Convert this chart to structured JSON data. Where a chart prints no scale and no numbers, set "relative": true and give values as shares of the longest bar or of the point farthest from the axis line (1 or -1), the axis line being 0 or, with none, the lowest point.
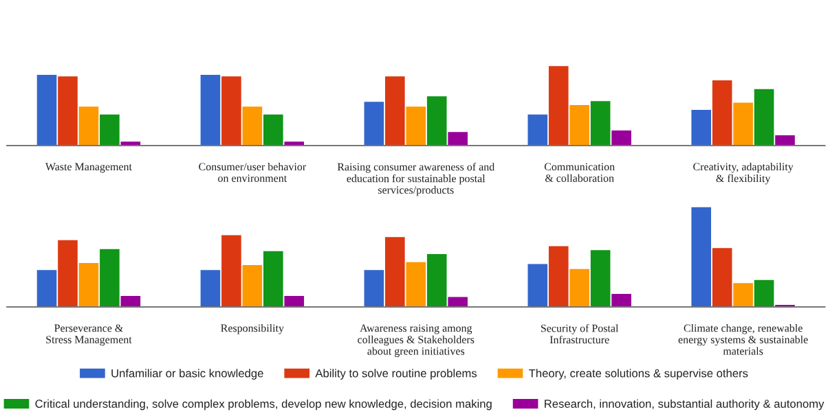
{
  "chart_data": [
    {
      "type": "bar",
      "relative": true,
      "legend": "bottom",
      "categories": [
        "Waste Management",
        "Consumer/user behavior\non environment",
        "Raising consumer awareness of and\neducation for sustainable postal\nservices/products",
        "Communication\n& collaboration",
        "Creativity, adaptability\n& flexibility"
      ],
      "series": [
        {
          "name": "Unfamiliar or basic knowledge",
          "color": "#3366cc",
          "values": [
            0.89,
            0.89,
            0.55,
            0.39,
            0.45
          ]
        },
        {
          "name": "Ability to solve routine problems",
          "color": "#dc3912",
          "values": [
            0.87,
            0.87,
            0.87,
            1,
            0.82
          ]
        },
        {
          "name": "Theory, create solutions & supervise others",
          "color": "#ff9900",
          "values": [
            0.49,
            0.49,
            0.49,
            0.51,
            0.54
          ]
        },
        {
          "name": "Critical understanding, solve complex problems, develop new knowledge, decision making",
          "color": "#109618",
          "values": [
            0.39,
            0.39,
            0.62,
            0.56,
            0.71
          ]
        },
        {
          "name": "Research, innovation, substantial authority & autonomy",
          "color": "#990099",
          "values": [
            0.05,
            0.05,
            0.17,
            0.19,
            0.13
          ]
        }
      ]
    },
    {
      "type": "bar",
      "relative": true,
      "legend": "bottom",
      "categories": [
        "Perseverance &\nStress Management",
        "Responsibility",
        "Awareness raising among\ncolleagues & Stakeholders\nabout green initiatives",
        "Security of Postal\nInfrastructure",
        "Climate change, renewable\nenergy systems & sustainable\nmaterials"
      ],
      "series": [
        {
          "name": "Unfamiliar or basic knowledge",
          "color": "#3366cc",
          "values": [
            0.37,
            0.37,
            0.37,
            0.43,
            1
          ]
        },
        {
          "name": "Ability to solve routine problems",
          "color": "#dc3912",
          "values": [
            0.67,
            0.72,
            0.7,
            0.61,
            0.59
          ]
        },
        {
          "name": "Theory, create solutions & supervise others",
          "color": "#ff9900",
          "values": [
            0.44,
            0.42,
            0.45,
            0.38,
            0.24
          ]
        },
        {
          "name": "Critical understanding, solve complex problems, develop new knowledge, decision making",
          "color": "#109618",
          "values": [
            0.58,
            0.56,
            0.53,
            0.57,
            0.27
          ]
        },
        {
          "name": "Research, innovation, substantial authority & autonomy",
          "color": "#990099",
          "values": [
            0.11,
            0.11,
            0.1,
            0.13,
            0.02
          ]
        }
      ]
    }
  ]
}
